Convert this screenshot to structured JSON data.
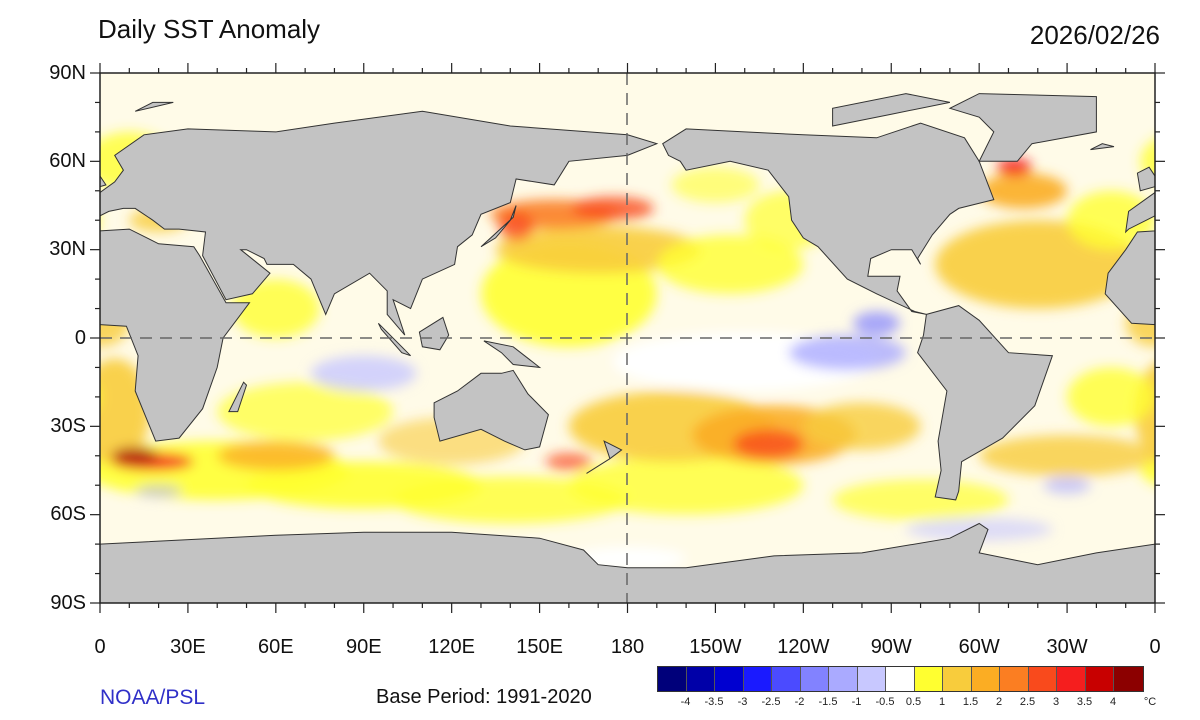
{
  "header": {
    "title": "Daily SST Anomaly",
    "date": "2026/02/26"
  },
  "axes": {
    "lat_labels": [
      "90N",
      "60N",
      "30N",
      "0",
      "30S",
      "60S",
      "90S"
    ],
    "lon_labels": [
      "0",
      "30E",
      "60E",
      "90E",
      "120E",
      "150E",
      "180",
      "150W",
      "120W",
      "90W",
      "60W",
      "30W",
      "0"
    ]
  },
  "footer": {
    "credit": "NOAA/PSL",
    "base_period": "Base Period: 1991-2020"
  },
  "colorbar": {
    "unit": "°C",
    "labels": [
      "-4",
      "-3.5",
      "-3",
      "-2.5",
      "-2",
      "-1.5",
      "-1",
      "-0.5",
      "0.5",
      "1",
      "1.5",
      "2",
      "2.5",
      "3",
      "3.5",
      "4"
    ],
    "colors": [
      "#00007a",
      "#0000a8",
      "#0000d0",
      "#1a1aff",
      "#4b4bff",
      "#8282ff",
      "#aaaaff",
      "#c8c8ff",
      "#ffffff",
      "#ffff30",
      "#f8cc3c",
      "#fbad23",
      "#fb7e22",
      "#f94a1c",
      "#f51e1e",
      "#c80000",
      "#8c0000"
    ]
  },
  "colors": {
    "land": "#c3c3c3",
    "credit": "#3030c8"
  }
}
